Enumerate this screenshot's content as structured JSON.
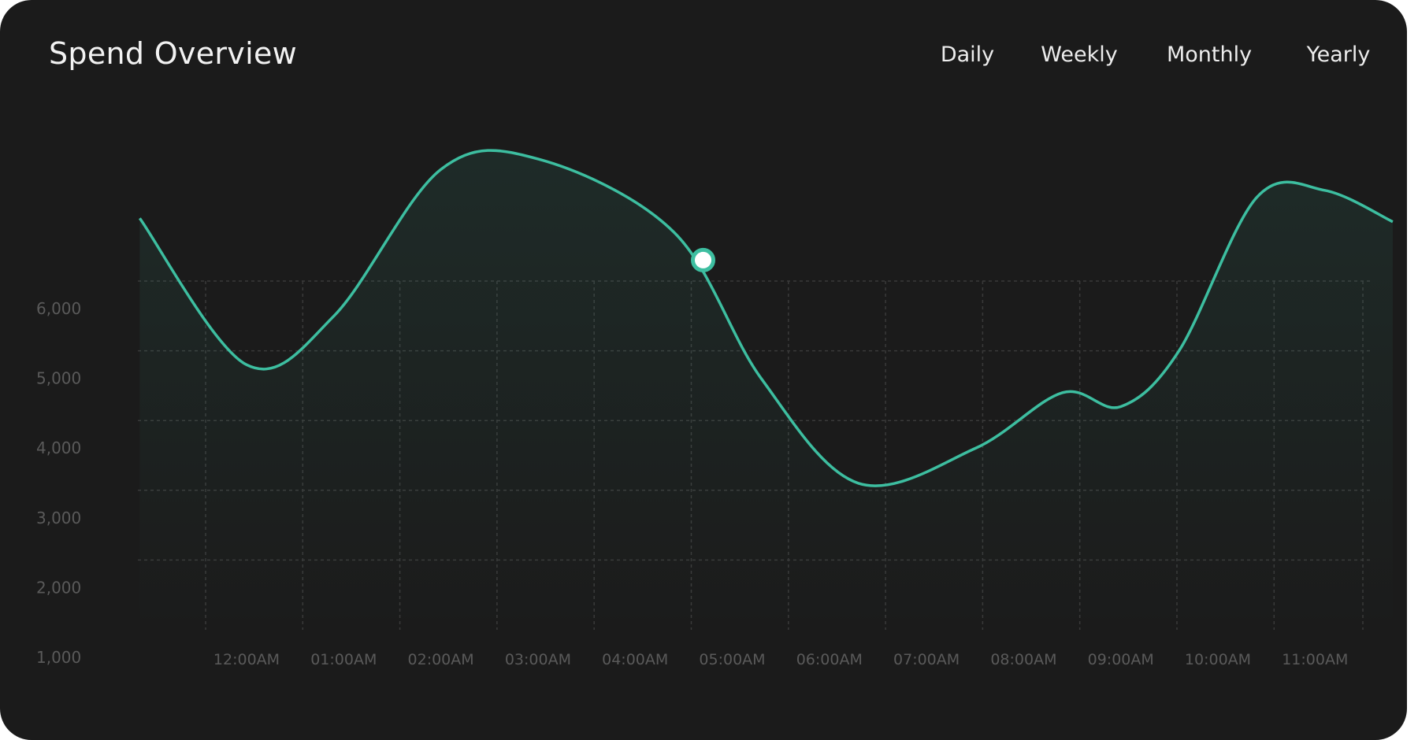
{
  "header": {
    "title": "Spend Overview"
  },
  "tabs": [
    {
      "label": "Daily"
    },
    {
      "label": "Weekly"
    },
    {
      "label": "Monthly"
    },
    {
      "label": "Yearly"
    }
  ],
  "colors": {
    "background": "#1b1b1b",
    "line": "#3dbea0",
    "marker_fill": "#ffffff",
    "grid": "#3a3a3a",
    "tick": "#5a5a5a"
  },
  "chart_data": {
    "type": "area",
    "x": [
      "12:00AM",
      "01:00AM",
      "02:00AM",
      "03:00AM",
      "04:00AM",
      "05:00AM",
      "06:00AM",
      "07:00AM",
      "08:00AM",
      "09:00AM",
      "10:00AM",
      "11:00AM"
    ],
    "y_ticks": [
      1000,
      2000,
      3000,
      4000,
      5000,
      6000
    ],
    "ylim": [
      1000,
      7500
    ],
    "grid": true,
    "highlight_point": {
      "x": 4.7,
      "y": 6300
    },
    "series": [
      {
        "points": [
          [
            -1.1,
            6900
          ],
          [
            0.0,
            4800
          ],
          [
            0.9,
            5500
          ],
          [
            2.0,
            7600
          ],
          [
            3.0,
            7750
          ],
          [
            4.4,
            6700
          ],
          [
            5.3,
            4600
          ],
          [
            6.3,
            3100
          ],
          [
            7.5,
            3600
          ],
          [
            8.4,
            4400
          ],
          [
            9.0,
            4200
          ],
          [
            9.6,
            5000
          ],
          [
            10.4,
            7200
          ],
          [
            11.1,
            7300
          ],
          [
            11.8,
            6850
          ]
        ]
      }
    ],
    "title": "",
    "xlabel": "",
    "ylabel": ""
  }
}
